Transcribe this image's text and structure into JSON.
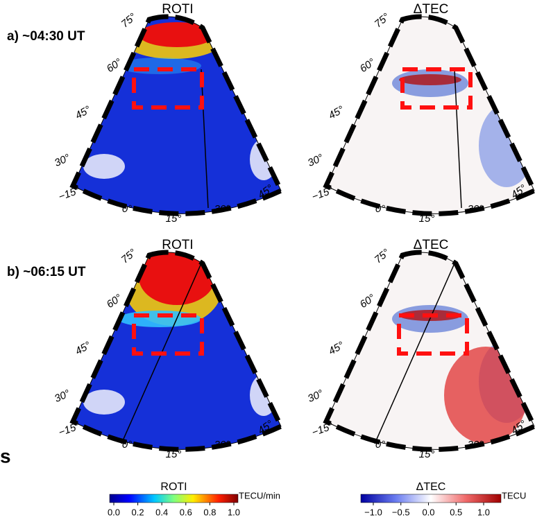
{
  "rows": [
    {
      "label": "a) ~04:30 UT",
      "panels": [
        {
          "title": "ROTI"
        },
        {
          "title": "ΔTEC"
        }
      ]
    },
    {
      "label": "b) ~06:15 UT",
      "panels": [
        {
          "title": "ROTI"
        },
        {
          "title": "ΔTEC"
        }
      ]
    }
  ],
  "map_labels": {
    "lat": [
      "75°",
      "60°",
      "45°",
      "30°"
    ],
    "lon": [
      "−15°",
      "0°",
      "15°",
      "30°",
      "45°"
    ]
  },
  "colorbars": [
    {
      "title": "ROTI",
      "unit": "TECU/min",
      "ticks": [
        "0.0",
        "0.2",
        "0.4",
        "0.6",
        "0.8",
        "1.0"
      ]
    },
    {
      "title": "ΔTEC",
      "unit": "TECU",
      "ticks": [
        "−1.0",
        "−0.5",
        "0.0",
        "0.5",
        "1.0"
      ]
    }
  ],
  "fragment": "s"
}
